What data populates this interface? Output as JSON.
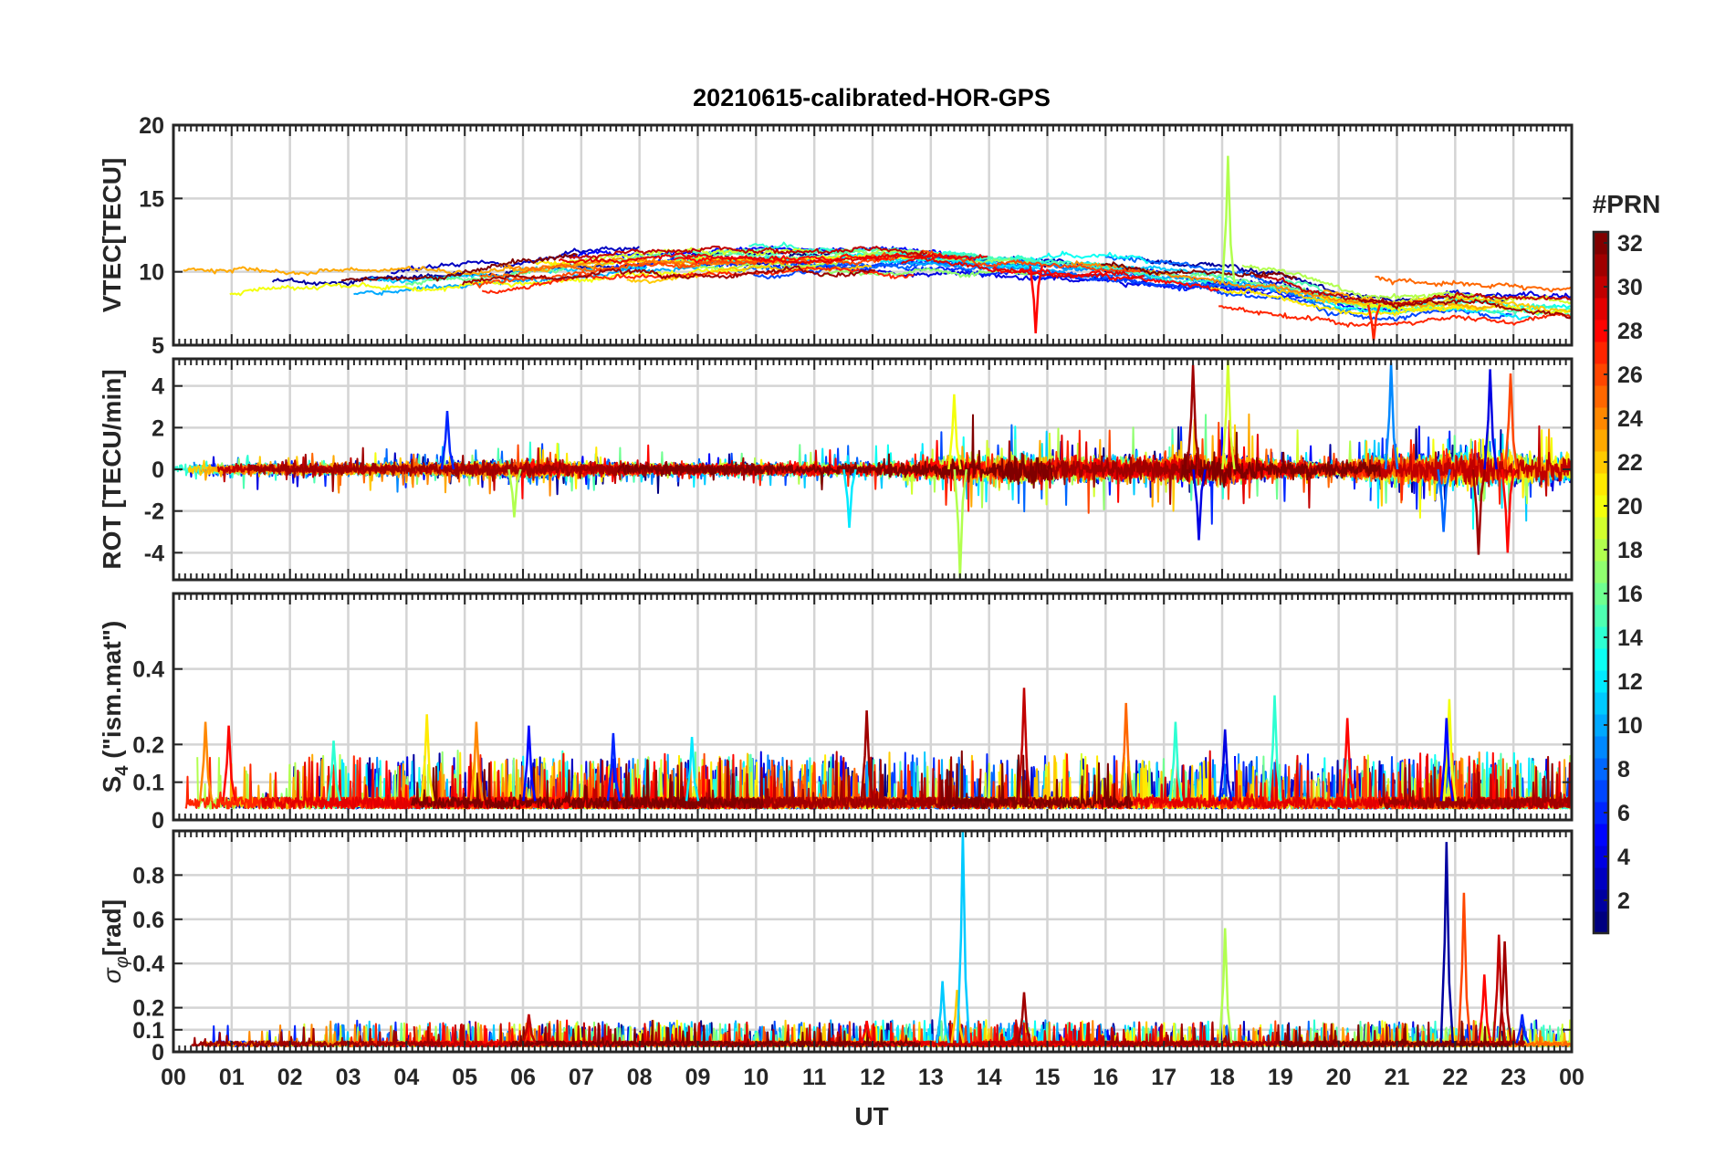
{
  "chart_data": {
    "title": "20210615-calibrated-HOR-GPS",
    "type": "line",
    "xlabel": "UT",
    "x_tick_labels": [
      "00",
      "01",
      "02",
      "03",
      "04",
      "05",
      "06",
      "07",
      "08",
      "09",
      "10",
      "11",
      "12",
      "13",
      "14",
      "15",
      "16",
      "17",
      "18",
      "19",
      "20",
      "21",
      "22",
      "23",
      "00"
    ],
    "xlim_hours": [
      0,
      24
    ],
    "grid": true,
    "color_encoding": "jet colormap by satellite PRN number",
    "colorbar": {
      "title": "#PRN",
      "range": [
        1,
        32
      ],
      "tick_labels": [
        "2",
        "4",
        "6",
        "8",
        "10",
        "12",
        "14",
        "16",
        "18",
        "20",
        "22",
        "24",
        "26",
        "28",
        "30",
        "32"
      ],
      "colors": [
        "#00008f",
        "#0000ff",
        "#0080ff",
        "#00ffff",
        "#80ff80",
        "#ffff00",
        "#ff8000",
        "#ff0000",
        "#800000"
      ]
    },
    "panels": [
      {
        "id": "vtec",
        "ylabel": "VTEC[TECU]",
        "ylim": [
          5,
          20
        ],
        "y_ticks": [
          5,
          10,
          15,
          20
        ],
        "baseline": [
          [
            0,
            9.2
          ],
          [
            2,
            9.4
          ],
          [
            4,
            9.7
          ],
          [
            6,
            10.2
          ],
          [
            8,
            10.8
          ],
          [
            10,
            10.9
          ],
          [
            12,
            11.0
          ],
          [
            13,
            10.9
          ],
          [
            14,
            10.6
          ],
          [
            16,
            10.1
          ],
          [
            17,
            9.7
          ],
          [
            18,
            9.3
          ],
          [
            19,
            8.9
          ],
          [
            20,
            8.0
          ],
          [
            21,
            7.6
          ],
          [
            22,
            7.9
          ],
          [
            23,
            7.6
          ],
          [
            24,
            7.4
          ]
        ],
        "spread": 1.5,
        "events": [
          {
            "hour": 18.1,
            "value": 17.9,
            "prn": 18
          },
          {
            "hour": 14.8,
            "value": 5.8,
            "prn": 28
          },
          {
            "hour": 20.6,
            "value": 5.3,
            "prn": 27
          }
        ]
      },
      {
        "id": "rot",
        "ylabel": "ROT [TECU/min]",
        "ylim": [
          -5.3,
          5.3
        ],
        "y_ticks": [
          -4,
          -2,
          0,
          2,
          4
        ],
        "y_tick_labels": [
          "-4",
          "-2",
          "0",
          "2",
          "4"
        ],
        "activity": [
          [
            0,
            0.35
          ],
          [
            4,
            0.4
          ],
          [
            6,
            0.55
          ],
          [
            8,
            0.4
          ],
          [
            10,
            0.4
          ],
          [
            12,
            0.45
          ],
          [
            13,
            0.7
          ],
          [
            14,
            0.9
          ],
          [
            16,
            0.8
          ],
          [
            17,
            0.9
          ],
          [
            18,
            1.0
          ],
          [
            19,
            0.6
          ],
          [
            20,
            0.5
          ],
          [
            21,
            0.9
          ],
          [
            22,
            1.1
          ],
          [
            23,
            1.0
          ],
          [
            24,
            0.9
          ]
        ],
        "events": [
          {
            "hour": 4.7,
            "value": 2.8,
            "prn": 6
          },
          {
            "hour": 5.85,
            "value": -2.3,
            "prn": 18
          },
          {
            "hour": 11.6,
            "value": -2.8,
            "prn": 12
          },
          {
            "hour": 13.5,
            "value": -5.2,
            "prn": 18
          },
          {
            "hour": 13.4,
            "value": 3.6,
            "prn": 20
          },
          {
            "hour": 17.5,
            "value": 5.0,
            "prn": 31
          },
          {
            "hour": 17.6,
            "value": -3.4,
            "prn": 4
          },
          {
            "hour": 18.1,
            "value": 5.3,
            "prn": 19
          },
          {
            "hour": 20.9,
            "value": 5.1,
            "prn": 9
          },
          {
            "hour": 21.8,
            "value": -3.0,
            "prn": 8
          },
          {
            "hour": 22.4,
            "value": -4.1,
            "prn": 31
          },
          {
            "hour": 22.6,
            "value": 4.8,
            "prn": 4
          },
          {
            "hour": 22.9,
            "value": -4.0,
            "prn": 28
          },
          {
            "hour": 22.95,
            "value": 4.6,
            "prn": 26
          }
        ]
      },
      {
        "id": "s4",
        "ylabel": "S4 (\"ism.mat\")",
        "ylabel_parts": {
          "symbol": "S",
          "subscript": "4",
          "rest": " (\"ism.mat\")"
        },
        "ylim": [
          0,
          0.6
        ],
        "y_ticks": [
          0,
          0.1,
          0.2,
          0.4
        ],
        "y_tick_labels": [
          "0",
          "0.1",
          "0.2",
          "0.4"
        ],
        "background_level": 0.05,
        "events": [
          {
            "hour": 0.55,
            "value": 0.26,
            "prn": 24
          },
          {
            "hour": 0.95,
            "value": 0.25,
            "prn": 28
          },
          {
            "hour": 2.75,
            "value": 0.21,
            "prn": 14
          },
          {
            "hour": 4.35,
            "value": 0.28,
            "prn": 21
          },
          {
            "hour": 5.2,
            "value": 0.26,
            "prn": 24
          },
          {
            "hour": 6.1,
            "value": 0.25,
            "prn": 5
          },
          {
            "hour": 7.55,
            "value": 0.23,
            "prn": 6
          },
          {
            "hour": 8.9,
            "value": 0.22,
            "prn": 12
          },
          {
            "hour": 11.9,
            "value": 0.29,
            "prn": 31
          },
          {
            "hour": 14.6,
            "value": 0.35,
            "prn": 30
          },
          {
            "hour": 16.35,
            "value": 0.31,
            "prn": 25
          },
          {
            "hour": 17.2,
            "value": 0.26,
            "prn": 14
          },
          {
            "hour": 18.05,
            "value": 0.24,
            "prn": 4
          },
          {
            "hour": 18.9,
            "value": 0.33,
            "prn": 14
          },
          {
            "hour": 20.15,
            "value": 0.27,
            "prn": 28
          },
          {
            "hour": 21.9,
            "value": 0.32,
            "prn": 20
          },
          {
            "hour": 21.85,
            "value": 0.27,
            "prn": 5
          }
        ]
      },
      {
        "id": "sigma_phi",
        "ylabel": "σφ[rad]",
        "ylabel_parts": {
          "symbol": "σ",
          "subscript": "φ",
          "rest": "[rad]"
        },
        "ylim": [
          0,
          1.0
        ],
        "y_ticks": [
          0,
          0.1,
          0.2,
          0.4,
          0.6,
          0.8
        ],
        "y_tick_labels": [
          "0",
          "0.1",
          "0.2",
          "0.4",
          "0.6",
          "0.8"
        ],
        "background_level": 0.04,
        "events": [
          {
            "hour": 6.1,
            "value": 0.17,
            "prn": 30
          },
          {
            "hour": 11.9,
            "value": 0.14,
            "prn": 28
          },
          {
            "hour": 13.2,
            "value": 0.32,
            "prn": 11
          },
          {
            "hour": 13.45,
            "value": 0.28,
            "prn": 22
          },
          {
            "hour": 13.55,
            "value": 1.0,
            "prn": 11
          },
          {
            "hour": 14.6,
            "value": 0.27,
            "prn": 31
          },
          {
            "hour": 18.05,
            "value": 0.56,
            "prn": 18
          },
          {
            "hour": 21.85,
            "value": 0.95,
            "prn": 2
          },
          {
            "hour": 22.15,
            "value": 0.72,
            "prn": 26
          },
          {
            "hour": 22.5,
            "value": 0.35,
            "prn": 28
          },
          {
            "hour": 22.75,
            "value": 0.53,
            "prn": 30
          },
          {
            "hour": 22.85,
            "value": 0.5,
            "prn": 31
          },
          {
            "hour": 23.15,
            "value": 0.17,
            "prn": 6
          }
        ]
      }
    ]
  }
}
